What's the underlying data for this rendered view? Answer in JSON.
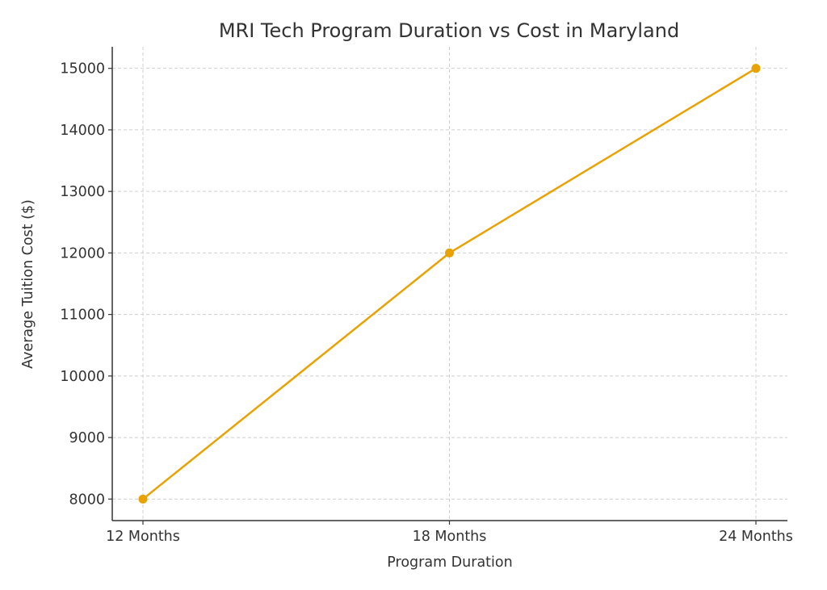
{
  "chart_data": {
    "type": "line",
    "title": "MRI Tech Program Duration vs Cost in Maryland",
    "xlabel": "Program Duration",
    "ylabel": "Average Tuition Cost ($)",
    "categories": [
      "12 Months",
      "18 Months",
      "24 Months"
    ],
    "series": [
      {
        "name": "Average Tuition Cost",
        "values": [
          8000,
          12000,
          15000
        ],
        "color": "#E8A202",
        "marker": "circle"
      }
    ],
    "yticks": [
      8000,
      9000,
      10000,
      11000,
      12000,
      13000,
      14000,
      15000
    ],
    "ytick_labels": [
      "8000",
      "9000",
      "10000",
      "11000",
      "12000",
      "13000",
      "14000",
      "15000"
    ],
    "ylim": [
      7650,
      15350
    ],
    "grid": true,
    "legend": "none"
  }
}
